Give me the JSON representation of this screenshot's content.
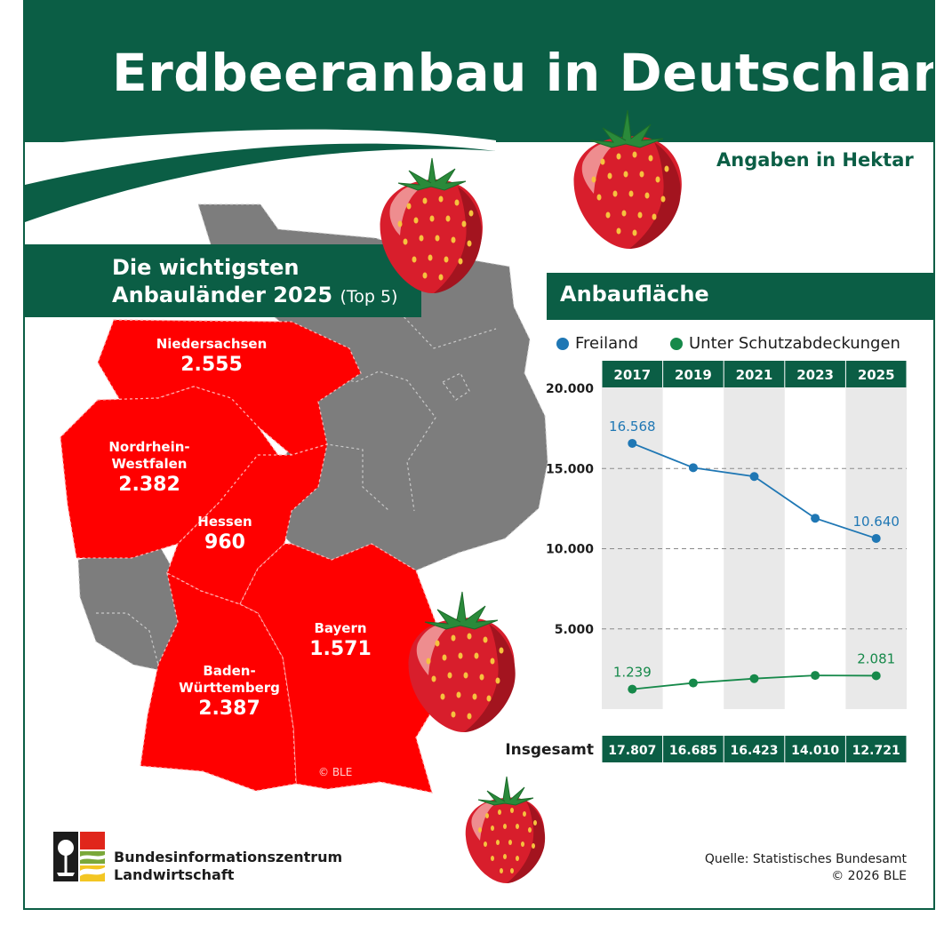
{
  "header": {
    "title": "Erdbeeranbau in Deutschland",
    "unit_note": "Angaben in Hektar"
  },
  "map_section": {
    "title_line1": "Die wichtigsten",
    "title_line2": "Anbauländer 2025",
    "title_suffix": "(Top 5)",
    "states": [
      {
        "name": "Niedersachsen",
        "value": "2.555"
      },
      {
        "name": "Nordrhein-",
        "name2": "Westfalen",
        "value": "2.382"
      },
      {
        "name": "Hessen",
        "value": "960"
      },
      {
        "name": "Bayern",
        "value": "1.571"
      },
      {
        "name": "Baden-",
        "name2": "Württemberg",
        "value": "2.387"
      }
    ],
    "copyright": "© BLE",
    "colors": {
      "highlight": "#ff0000",
      "other": "#7d7d7d"
    }
  },
  "chart_section": {
    "title": "Anbaufläche",
    "legend": [
      {
        "label": "Freiland",
        "color": "#1f77b4"
      },
      {
        "label": "Unter Schutzabdeckungen",
        "color": "#16894a"
      }
    ],
    "total_label": "Insgesamt"
  },
  "chart_data": {
    "type": "line",
    "x": [
      "2017",
      "2019",
      "2021",
      "2023",
      "2025"
    ],
    "series": [
      {
        "name": "Freiland",
        "values": [
          16568,
          15050,
          14500,
          11900,
          10640
        ],
        "labels": [
          "16.568",
          "",
          "",
          "",
          "10.640"
        ],
        "color": "#1f77b4"
      },
      {
        "name": "Unter Schutzabdeckungen",
        "values": [
          1239,
          1630,
          1900,
          2100,
          2081
        ],
        "labels": [
          "1.239",
          "",
          "",
          "",
          "2.081"
        ],
        "color": "#16894a"
      }
    ],
    "totals": [
      "17.807",
      "16.685",
      "16.423",
      "14.010",
      "12.721"
    ],
    "ylim": [
      0,
      20000
    ],
    "yticks": [
      5000,
      10000,
      15000,
      20000
    ],
    "ytick_labels": [
      "5.000",
      "10.000",
      "15.000",
      "20.000"
    ],
    "grid": true
  },
  "footer": {
    "org_line1": "Bundesinformationszentrum",
    "org_line2": "Landwirtschaft",
    "source_line1": "Quelle: Statistisches Bundesamt",
    "source_line2": "© 2026 BLE"
  }
}
